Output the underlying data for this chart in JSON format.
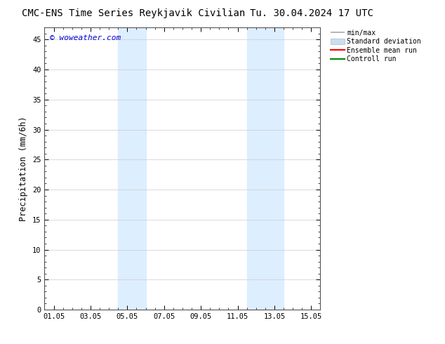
{
  "title_left": "CMC-ENS Time Series Reykjavik Civilian",
  "title_right": "Tu. 30.04.2024 17 UTC",
  "ylabel": "Precipitation (mm/6h)",
  "watermark": "© woweather.com",
  "watermark_color": "#0000cc",
  "x_tick_labels": [
    "01.05",
    "03.05",
    "05.05",
    "07.05",
    "09.05",
    "11.05",
    "13.05",
    "15.05"
  ],
  "x_tick_positions": [
    0,
    2,
    4,
    6,
    8,
    10,
    12,
    14
  ],
  "ylim": [
    0,
    47
  ],
  "yticks": [
    0,
    5,
    10,
    15,
    20,
    25,
    30,
    35,
    40,
    45
  ],
  "xlim": [
    -0.5,
    14.5
  ],
  "shaded_regions": [
    {
      "x_start": 3.5,
      "x_end": 5.0,
      "color": "#ddeeff"
    },
    {
      "x_start": 10.5,
      "x_end": 12.5,
      "color": "#ddeeff"
    }
  ],
  "legend_entries": [
    {
      "label": "min/max",
      "color": "#aaaaaa",
      "lw": 1.5,
      "ls": "-",
      "type": "errorbar"
    },
    {
      "label": "Standard deviation",
      "color": "#ccddf0",
      "lw": 8,
      "ls": "-",
      "type": "patch"
    },
    {
      "label": "Ensemble mean run",
      "color": "#ff0000",
      "lw": 1.5,
      "ls": "-",
      "type": "line"
    },
    {
      "label": "Controll run",
      "color": "#008800",
      "lw": 1.5,
      "ls": "-",
      "type": "line"
    }
  ],
  "bg_color": "#ffffff",
  "plot_bg_color": "#ffffff",
  "grid_color": "#cccccc",
  "tick_label_fontsize": 7.5,
  "axis_label_fontsize": 8.5,
  "title_fontsize": 10
}
